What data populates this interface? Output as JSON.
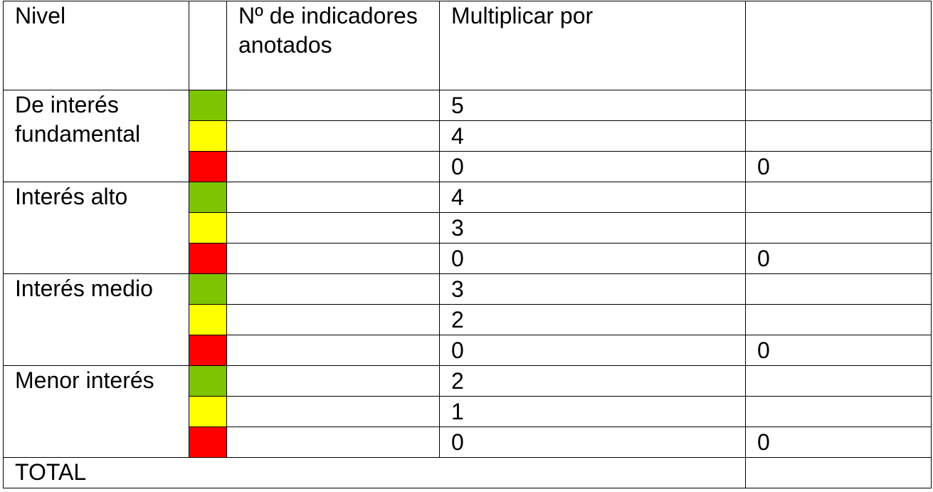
{
  "colors": {
    "green": "#7fc400",
    "yellow": "#ffff00",
    "red": "#ff0000"
  },
  "header": {
    "nivel": "Nivel",
    "color": "",
    "indicadores": "Nº de indicadores anotados",
    "multiplicar": "Multiplicar por",
    "resultado": ""
  },
  "groups": [
    {
      "label": "De interés fundamental",
      "rows": [
        {
          "color": "green",
          "indicadores": "",
          "multiplicar": "5",
          "resultado": ""
        },
        {
          "color": "yellow",
          "indicadores": "",
          "multiplicar": "4",
          "resultado": ""
        },
        {
          "color": "red",
          "indicadores": "",
          "multiplicar": "0",
          "resultado": "0"
        }
      ]
    },
    {
      "label": "Interés alto",
      "rows": [
        {
          "color": "green",
          "indicadores": "",
          "multiplicar": "4",
          "resultado": ""
        },
        {
          "color": "yellow",
          "indicadores": "",
          "multiplicar": "3",
          "resultado": ""
        },
        {
          "color": "red",
          "indicadores": "",
          "multiplicar": "0",
          "resultado": "0"
        }
      ]
    },
    {
      "label": "Interés medio",
      "rows": [
        {
          "color": "green",
          "indicadores": "",
          "multiplicar": "3",
          "resultado": ""
        },
        {
          "color": "yellow",
          "indicadores": "",
          "multiplicar": "2",
          "resultado": ""
        },
        {
          "color": "red",
          "indicadores": "",
          "multiplicar": "0",
          "resultado": "0"
        }
      ]
    },
    {
      "label": "Menor interés",
      "rows": [
        {
          "color": "green",
          "indicadores": "",
          "multiplicar": "2",
          "resultado": ""
        },
        {
          "color": "yellow",
          "indicadores": "",
          "multiplicar": "1",
          "resultado": ""
        },
        {
          "color": "red",
          "indicadores": "",
          "multiplicar": "0",
          "resultado": "0"
        }
      ]
    }
  ],
  "total": {
    "label": "TOTAL",
    "value": ""
  }
}
